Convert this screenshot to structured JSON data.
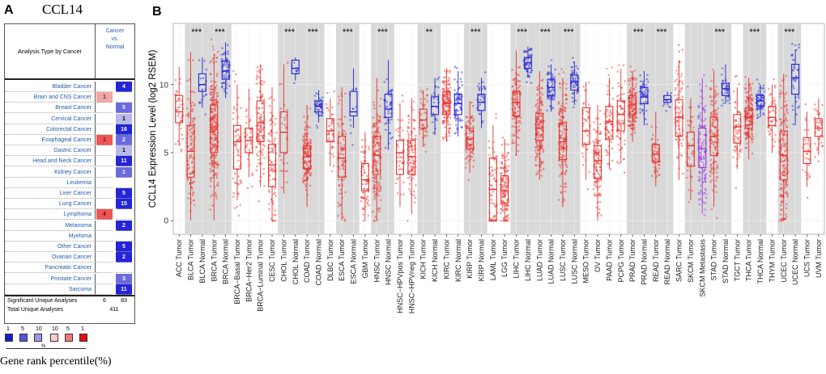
{
  "panel_a": {
    "letter": "A",
    "gene": "CCL14",
    "header_left": "Analysis Type by Cancer",
    "header_right": [
      "Cancer",
      "vs.",
      "Normal"
    ],
    "rows": [
      {
        "label": "Bladder Cancer",
        "left": "",
        "right": "4",
        "right_shade": "dark"
      },
      {
        "label": "Brain and CNS Cancer",
        "left": "1",
        "left_shade": "light",
        "right": "",
        "right_shade": ""
      },
      {
        "label": "Breast Cancer",
        "left": "",
        "right": "5",
        "right_shade": "mid"
      },
      {
        "label": "Cervical Cancer",
        "left": "",
        "right": "1",
        "right_shade": "light"
      },
      {
        "label": "Colorectal Cancer",
        "left": "",
        "right": "16",
        "right_shade": "dark"
      },
      {
        "label": "Esophageal Cancer",
        "left": "1",
        "left_shade": "dark",
        "right": "2",
        "right_shade": "mid"
      },
      {
        "label": "Gastric Cancer",
        "left": "",
        "right": "1",
        "right_shade": "light"
      },
      {
        "label": "Head and Neck Cancer",
        "left": "",
        "right": "11",
        "right_shade": "dark"
      },
      {
        "label": "Kidney Cancer",
        "left": "",
        "right": "1",
        "right_shade": "mid"
      },
      {
        "label": "Leukemia",
        "left": "",
        "right": "",
        "right_shade": ""
      },
      {
        "label": "Liver Cancer",
        "left": "",
        "right": "5",
        "right_shade": "dark"
      },
      {
        "label": "Lung Cancer",
        "left": "",
        "right": "15",
        "right_shade": "dark"
      },
      {
        "label": "Lymphoma",
        "left": "4",
        "left_shade": "dark",
        "right": "",
        "right_shade": ""
      },
      {
        "label": "Melanoma",
        "left": "",
        "right": "2",
        "right_shade": "dark"
      },
      {
        "label": "Myeloma",
        "left": "",
        "right": "",
        "right_shade": ""
      },
      {
        "label": "Other Cancer",
        "left": "",
        "right": "5",
        "right_shade": "dark"
      },
      {
        "label": "Ovarian Cancer",
        "left": "",
        "right": "2",
        "right_shade": "dark"
      },
      {
        "label": "Pancreatic Cancer",
        "left": "",
        "right": "",
        "right_shade": ""
      },
      {
        "label": "Prostate Cancer",
        "left": "",
        "right": "3",
        "right_shade": "mid"
      },
      {
        "label": "Sarcoma",
        "left": "",
        "right": "11",
        "right_shade": "dark"
      }
    ],
    "significant_label": "Significant Unique Analyses",
    "significant_left": "6",
    "significant_right": "83",
    "total_label": "Total Unique Analyses",
    "total_value": "411",
    "legend_numbers": [
      "1",
      "5",
      "10",
      "10",
      "5",
      "1"
    ],
    "legend_percent": "%",
    "legend_colors": [
      "#1a1acc",
      "#5555dd",
      "#9999ee",
      "#ffcccc",
      "#ee7777",
      "#dd1111"
    ],
    "rank_caption": "Gene rank percentile(%)",
    "colors": {
      "up": "#ee5555",
      "up_light": "#f4a6a6",
      "down_dark": "#2424d8",
      "down_mid": "#6a6ae0",
      "down_light": "#b8b8ee"
    }
  },
  "panel_b": {
    "letter": "B"
  },
  "chart_data": {
    "type": "box",
    "ylabel": "CCL14 Expression Level (log2 RSEM)",
    "ylim": [
      -1,
      14.5
    ],
    "yticks": [
      0,
      5,
      10
    ],
    "grid": true,
    "shaded_groups": [
      "BLCA",
      "BRCA",
      "CHOL",
      "COAD",
      "ESCA",
      "HNSC",
      "KICH",
      "KIRP",
      "LIHC",
      "LUAD",
      "LUSC",
      "PRAD",
      "READ",
      "SKCM",
      "STAD",
      "THCA",
      "UCEC"
    ],
    "colors": {
      "tumor": "#e8322e",
      "normal": "#2424d8",
      "metastasis": "#9a3fe0",
      "shade": "#d9d9d9"
    },
    "categories": [
      "ACC.Tumor",
      "BLCA.Tumor",
      "BLCA.Normal",
      "BRCA.Tumor",
      "BRCA.Normal",
      "BRCA−Basal.Tumor",
      "BRCA−Her2.Tumor",
      "BRCA−Luminal.Tumor",
      "CESC.Tumor",
      "CHOL.Tumor",
      "CHOL.Normal",
      "COAD.Tumor",
      "COAD.Normal",
      "DLBC.Tumor",
      "ESCA.Tumor",
      "ESCA.Normal",
      "GBM.Tumor",
      "HNSC.Tumor",
      "HNSC.Normal",
      "HNSC−HPVpos.Tumor",
      "HNSC−HPVneg.Tumor",
      "KICH.Tumor",
      "KICH.Normal",
      "KIRC.Tumor",
      "KIRC.Normal",
      "KIRP.Tumor",
      "KIRP.Normal",
      "LAML.Tumor",
      "LGG.Tumor",
      "LIHC.Tumor",
      "LIHC.Normal",
      "LUAD.Tumor",
      "LUAD.Normal",
      "LUSC.Tumor",
      "LUSC.Normal",
      "MESO.Tumor",
      "OV.Tumor",
      "PAAD.Tumor",
      "PCPG.Tumor",
      "PRAD.Tumor",
      "PRAD.Normal",
      "READ.Tumor",
      "READ.Normal",
      "SARC.Tumor",
      "SKCM.Tumor",
      "SKCM.Metastasis",
      "STAD.Tumor",
      "STAD.Normal",
      "TGCT.Tumor",
      "THCA.Tumor",
      "THCA.Normal",
      "THYM.Tumor",
      "UCEC.Tumor",
      "UCEC.Normal",
      "UCS.Tumor",
      "UVM.Tumor"
    ],
    "boxes": [
      {
        "cat": "ACC.Tumor",
        "kind": "tumor",
        "q1": 7.2,
        "median": 8.0,
        "q3": 9.2,
        "lo": 5.5,
        "hi": 11.3,
        "n": 40
      },
      {
        "cat": "BLCA.Tumor",
        "kind": "tumor",
        "q1": 3.2,
        "median": 5.1,
        "q3": 7.0,
        "lo": 0,
        "hi": 12.4,
        "n": 120
      },
      {
        "cat": "BLCA.Normal",
        "kind": "normal",
        "q1": 9.5,
        "median": 10.0,
        "q3": 10.8,
        "lo": 8.3,
        "hi": 12.0,
        "n": 19,
        "sig": "***"
      },
      {
        "cat": "BRCA.Tumor",
        "kind": "tumor",
        "q1": 5.0,
        "median": 6.9,
        "q3": 8.5,
        "lo": 0,
        "hi": 12.3,
        "n": 260
      },
      {
        "cat": "BRCA.Normal",
        "kind": "normal",
        "q1": 10.4,
        "median": 11.0,
        "q3": 11.7,
        "lo": 9.0,
        "hi": 13.1,
        "n": 60,
        "sig": "***"
      },
      {
        "cat": "BRCA−Basal.Tumor",
        "kind": "tumor",
        "q1": 3.8,
        "median": 5.8,
        "q3": 7.0,
        "lo": 1.5,
        "hi": 10.0,
        "n": 60
      },
      {
        "cat": "BRCA−Her2.Tumor",
        "kind": "tumor",
        "q1": 5.0,
        "median": 5.9,
        "q3": 6.8,
        "lo": 3.2,
        "hi": 9.7,
        "n": 40
      },
      {
        "cat": "BRCA−Luminal.Tumor",
        "kind": "tumor",
        "q1": 5.8,
        "median": 7.2,
        "q3": 8.8,
        "lo": 2.5,
        "hi": 11.5,
        "n": 120
      },
      {
        "cat": "CESC.Tumor",
        "kind": "tumor",
        "q1": 2.5,
        "median": 4.1,
        "q3": 5.6,
        "lo": 0,
        "hi": 9.8,
        "n": 90
      },
      {
        "cat": "CHOL.Tumor",
        "kind": "tumor",
        "q1": 5.0,
        "median": 6.5,
        "q3": 8.0,
        "lo": 2.0,
        "hi": 11.5,
        "n": 30
      },
      {
        "cat": "CHOL.Normal",
        "kind": "normal",
        "q1": 10.8,
        "median": 11.2,
        "q3": 11.8,
        "lo": 10.3,
        "hi": 12.0,
        "n": 9,
        "sig": "***"
      },
      {
        "cat": "COAD.Tumor",
        "kind": "tumor",
        "q1": 3.8,
        "median": 4.7,
        "q3": 5.5,
        "lo": 1.0,
        "hi": 8.5,
        "n": 160
      },
      {
        "cat": "COAD.Normal",
        "kind": "normal",
        "q1": 8.0,
        "median": 8.4,
        "q3": 8.8,
        "lo": 7.2,
        "hi": 9.6,
        "n": 41,
        "sig": "***"
      },
      {
        "cat": "DLBC.Tumor",
        "kind": "tumor",
        "q1": 5.8,
        "median": 6.6,
        "q3": 7.5,
        "lo": 4.0,
        "hi": 9.0,
        "n": 40
      },
      {
        "cat": "ESCA.Tumor",
        "kind": "tumor",
        "q1": 3.2,
        "median": 4.6,
        "q3": 6.2,
        "lo": 0,
        "hi": 9.8,
        "n": 90
      },
      {
        "cat": "ESCA.Normal",
        "kind": "normal",
        "q1": 7.7,
        "median": 8.0,
        "q3": 9.5,
        "lo": 6.8,
        "hi": 11.2,
        "n": 11,
        "sig": "***"
      },
      {
        "cat": "GBM.Tumor",
        "kind": "tumor",
        "q1": 2.2,
        "median": 3.0,
        "q3": 4.2,
        "lo": 0,
        "hi": 6.5,
        "n": 70
      },
      {
        "cat": "HNSC.Tumor",
        "kind": "tumor",
        "q1": 3.4,
        "median": 4.8,
        "q3": 6.2,
        "lo": 0,
        "hi": 10.5,
        "n": 160
      },
      {
        "cat": "HNSC.Normal",
        "kind": "normal",
        "q1": 7.6,
        "median": 8.2,
        "q3": 9.3,
        "lo": 5.2,
        "hi": 11.8,
        "n": 44,
        "sig": "***"
      },
      {
        "cat": "HNSC−HPVpos.Tumor",
        "kind": "tumor",
        "q1": 3.4,
        "median": 5.0,
        "q3": 5.9,
        "lo": 1.0,
        "hi": 8.5,
        "n": 40
      },
      {
        "cat": "HNSC−HPVneg.Tumor",
        "kind": "tumor",
        "q1": 3.4,
        "median": 4.7,
        "q3": 5.9,
        "lo": 0.5,
        "hi": 9.0,
        "n": 110
      },
      {
        "cat": "KICH.Tumor",
        "kind": "tumor",
        "q1": 6.8,
        "median": 7.4,
        "q3": 8.2,
        "lo": 5.5,
        "hi": 9.6,
        "n": 40
      },
      {
        "cat": "KICH.Normal",
        "kind": "normal",
        "q1": 7.8,
        "median": 8.4,
        "q3": 9.1,
        "lo": 6.3,
        "hi": 10.5,
        "n": 25,
        "sig": "**"
      },
      {
        "cat": "KIRC.Tumor",
        "kind": "tumor",
        "q1": 7.8,
        "median": 8.6,
        "q3": 9.5,
        "lo": 5.8,
        "hi": 11.2,
        "n": 160
      },
      {
        "cat": "KIRC.Normal",
        "kind": "normal",
        "q1": 7.8,
        "median": 8.6,
        "q3": 9.3,
        "lo": 6.2,
        "hi": 11.0,
        "n": 70
      },
      {
        "cat": "KIRP.Tumor",
        "kind": "tumor",
        "q1": 5.3,
        "median": 6.0,
        "q3": 6.8,
        "lo": 3.5,
        "hi": 8.8,
        "n": 90
      },
      {
        "cat": "KIRP.Normal",
        "kind": "normal",
        "q1": 8.1,
        "median": 8.7,
        "q3": 9.3,
        "lo": 6.8,
        "hi": 10.5,
        "n": 32,
        "sig": "***"
      },
      {
        "cat": "LAML.Tumor",
        "kind": "tumor",
        "q1": 0,
        "median": 2.3,
        "q3": 4.6,
        "lo": 0,
        "hi": 7.0,
        "n": 70
      },
      {
        "cat": "LGG.Tumor",
        "kind": "tumor",
        "q1": 1.3,
        "median": 2.2,
        "q3": 3.3,
        "lo": 0,
        "hi": 6.0,
        "n": 140
      },
      {
        "cat": "LIHC.Tumor",
        "kind": "tumor",
        "q1": 7.7,
        "median": 8.7,
        "q3": 9.5,
        "lo": 4.8,
        "hi": 12.5,
        "n": 120
      },
      {
        "cat": "LIHC.Normal",
        "kind": "normal",
        "q1": 11.2,
        "median": 11.6,
        "q3": 12.0,
        "lo": 10.5,
        "hi": 12.8,
        "n": 50,
        "sig": "***"
      },
      {
        "cat": "LUAD.Tumor",
        "kind": "tumor",
        "q1": 5.9,
        "median": 6.8,
        "q3": 7.9,
        "lo": 3.0,
        "hi": 11.0,
        "n": 160
      },
      {
        "cat": "LUAD.Normal",
        "kind": "normal",
        "q1": 9.2,
        "median": 9.8,
        "q3": 10.4,
        "lo": 8.0,
        "hi": 11.5,
        "n": 59,
        "sig": "***"
      },
      {
        "cat": "LUSC.Tumor",
        "kind": "tumor",
        "q1": 4.5,
        "median": 5.8,
        "q3": 7.2,
        "lo": 1.0,
        "hi": 10.5,
        "n": 160
      },
      {
        "cat": "LUSC.Normal",
        "kind": "normal",
        "q1": 9.6,
        "median": 10.2,
        "q3": 10.7,
        "lo": 8.5,
        "hi": 11.7,
        "n": 51,
        "sig": "***"
      },
      {
        "cat": "MESO.Tumor",
        "kind": "tumor",
        "q1": 5.6,
        "median": 6.6,
        "q3": 8.3,
        "lo": 3.0,
        "hi": 10.2,
        "n": 40
      },
      {
        "cat": "OV.Tumor",
        "kind": "tumor",
        "q1": 3.1,
        "median": 4.4,
        "q3": 5.5,
        "lo": 0,
        "hi": 8.5,
        "n": 120
      },
      {
        "cat": "PAAD.Tumor",
        "kind": "tumor",
        "q1": 6.0,
        "median": 7.3,
        "q3": 8.4,
        "lo": 3.8,
        "hi": 10.5,
        "n": 70
      },
      {
        "cat": "PCPG.Tumor",
        "kind": "tumor",
        "q1": 6.6,
        "median": 7.8,
        "q3": 8.8,
        "lo": 4.2,
        "hi": 11.0,
        "n": 70
      },
      {
        "cat": "PRAD.Tumor",
        "kind": "tumor",
        "q1": 7.8,
        "median": 8.5,
        "q3": 9.2,
        "lo": 5.8,
        "hi": 11.0,
        "n": 140
      },
      {
        "cat": "PRAD.Normal",
        "kind": "normal",
        "q1": 8.6,
        "median": 9.1,
        "q3": 9.8,
        "lo": 7.0,
        "hi": 11.0,
        "n": 52,
        "sig": "***"
      },
      {
        "cat": "READ.Tumor",
        "kind": "tumor",
        "q1": 4.3,
        "median": 4.9,
        "q3": 5.6,
        "lo": 2.5,
        "hi": 8.0,
        "n": 60
      },
      {
        "cat": "READ.Normal",
        "kind": "normal",
        "q1": 8.7,
        "median": 8.9,
        "q3": 9.2,
        "lo": 8.5,
        "hi": 9.5,
        "n": 10,
        "sig": "***"
      },
      {
        "cat": "SARC.Tumor",
        "kind": "tumor",
        "q1": 6.2,
        "median": 7.6,
        "q3": 8.9,
        "lo": 3.0,
        "hi": 11.8,
        "n": 90
      },
      {
        "cat": "SKCM.Tumor",
        "kind": "tumor",
        "q1": 4.0,
        "median": 5.5,
        "q3": 6.5,
        "lo": 1.5,
        "hi": 9.0,
        "n": 40
      },
      {
        "cat": "SKCM.Metastasis",
        "kind": "metastasis",
        "q1": 3.9,
        "median": 5.3,
        "q3": 6.8,
        "lo": 0.5,
        "hi": 10.5,
        "n": 140
      },
      {
        "cat": "STAD.Tumor",
        "kind": "tumor",
        "q1": 4.8,
        "median": 6.2,
        "q3": 7.6,
        "lo": 1.0,
        "hi": 11.0,
        "n": 130
      },
      {
        "cat": "STAD.Normal",
        "kind": "normal",
        "q1": 9.2,
        "median": 9.7,
        "q3": 10.1,
        "lo": 8.6,
        "hi": 11.5,
        "n": 35,
        "sig": "***"
      },
      {
        "cat": "TGCT.Tumor",
        "kind": "tumor",
        "q1": 5.7,
        "median": 6.9,
        "q3": 7.8,
        "lo": 3.8,
        "hi": 9.8,
        "n": 60
      },
      {
        "cat": "THCA.Tumor",
        "kind": "tumor",
        "q1": 6.8,
        "median": 7.6,
        "q3": 8.3,
        "lo": 4.5,
        "hi": 10.5,
        "n": 160
      },
      {
        "cat": "THCA.Normal",
        "kind": "normal",
        "q1": 8.4,
        "median": 8.8,
        "q3": 9.2,
        "lo": 7.6,
        "hi": 10.0,
        "n": 59,
        "sig": "***"
      },
      {
        "cat": "THYM.Tumor",
        "kind": "tumor",
        "q1": 7.0,
        "median": 7.6,
        "q3": 8.4,
        "lo": 5.0,
        "hi": 10.0,
        "n": 50
      },
      {
        "cat": "UCEC.Tumor",
        "kind": "tumor",
        "q1": 3.0,
        "median": 4.8,
        "q3": 6.6,
        "lo": 0,
        "hi": 10.8,
        "n": 170
      },
      {
        "cat": "UCEC.Normal",
        "kind": "normal",
        "q1": 9.3,
        "median": 10.5,
        "q3": 11.5,
        "lo": 7.0,
        "hi": 12.6,
        "n": 35,
        "sig": "***"
      },
      {
        "cat": "UCS.Tumor",
        "kind": "tumor",
        "q1": 4.2,
        "median": 5.1,
        "q3": 6.1,
        "lo": 2.5,
        "hi": 8.0,
        "n": 30
      },
      {
        "cat": "UVM.Tumor",
        "kind": "tumor",
        "q1": 6.2,
        "median": 6.8,
        "q3": 7.5,
        "lo": 4.8,
        "hi": 9.0,
        "n": 40
      }
    ]
  }
}
